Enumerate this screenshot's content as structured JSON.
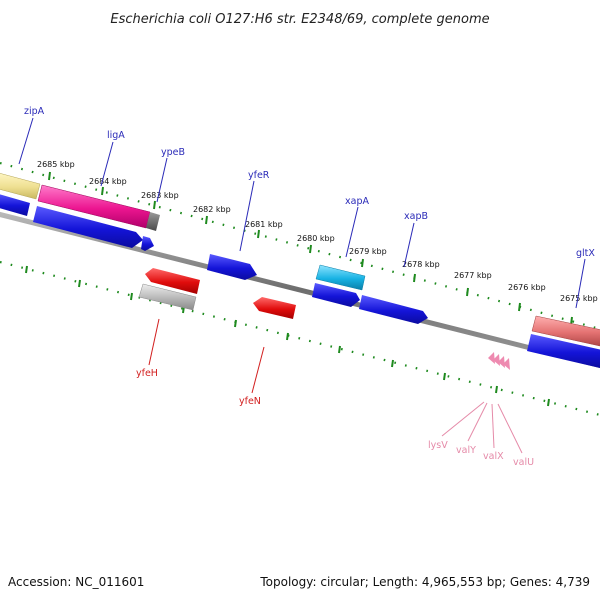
{
  "title": "Escherichia coli O127:H6 str. E2348/69, complete genome",
  "footer": {
    "accession": "Accession: NC_011601",
    "summary": "Topology: circular; Length: 4,965,553 bp; Genes: 4,739"
  },
  "ticks": [
    "2685 kbp",
    "2684 kbp",
    "2683 kbp",
    "2682 kbp",
    "2681 kbp",
    "2680 kbp",
    "2679 kbp",
    "2678 kbp",
    "2677 kbp",
    "2676 kbp",
    "2675 kbp"
  ],
  "forward_labels": [
    "zipA",
    "ligA",
    "ypeB",
    "yfeR",
    "xapA",
    "xapB",
    "gltX"
  ],
  "reverse_labels": [
    "yfeH",
    "yfeN"
  ],
  "trna_labels": [
    "lysV",
    "valY",
    "valX",
    "valU"
  ],
  "colors": {
    "forward_label": "#2b2bb8",
    "reverse_label": "#d21f1f",
    "trna_label": "#e58aa8",
    "cds_blue": "#1a1ae0",
    "cds_red": "#e01010",
    "cds_grey": "#bdbdbd",
    "cds_magenta": "#ee1e9a",
    "cds_yellow": "#f2e79a",
    "cds_cyan": "#1ab7e6",
    "cds_salmon": "#e87a7a",
    "backbone": "#777777",
    "tick_dots": "#1e8a1e",
    "tick_major": "#1e8a1e"
  }
}
